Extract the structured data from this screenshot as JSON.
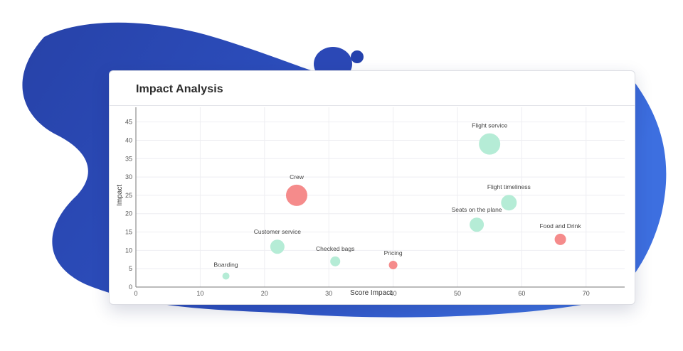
{
  "header": {
    "title": "Impact Analysis"
  },
  "chart_data": {
    "type": "scatter",
    "title": "Impact Analysis",
    "xlabel": "Score Impact",
    "ylabel": "Impact",
    "xlim": [
      0,
      76
    ],
    "ylim": [
      0,
      49
    ],
    "xticks": [
      0,
      10,
      20,
      30,
      40,
      50,
      60,
      70
    ],
    "yticks": [
      0,
      5,
      10,
      15,
      20,
      25,
      30,
      35,
      40,
      45
    ],
    "grid": true,
    "colors": {
      "positive": "#b5ecd6",
      "negative": "#f58b8b"
    },
    "points": [
      {
        "label": "Flight service",
        "x": 55,
        "y": 39,
        "size": 15,
        "sentiment": "positive"
      },
      {
        "label": "Crew",
        "x": 25,
        "y": 25,
        "size": 15,
        "sentiment": "negative"
      },
      {
        "label": "Flight timeliness",
        "x": 58,
        "y": 23,
        "size": 11,
        "sentiment": "positive"
      },
      {
        "label": "Seats on the plane",
        "x": 53,
        "y": 17,
        "size": 10,
        "sentiment": "positive"
      },
      {
        "label": "Food and Drink",
        "x": 66,
        "y": 13,
        "size": 8,
        "sentiment": "negative"
      },
      {
        "label": "Customer service",
        "x": 22,
        "y": 11,
        "size": 10,
        "sentiment": "positive"
      },
      {
        "label": "Checked bags",
        "x": 31,
        "y": 7,
        "size": 7,
        "sentiment": "positive"
      },
      {
        "label": "Pricing",
        "x": 40,
        "y": 6,
        "size": 6,
        "sentiment": "negative"
      },
      {
        "label": "Boarding",
        "x": 14,
        "y": 3,
        "size": 5,
        "sentiment": "positive"
      }
    ]
  }
}
